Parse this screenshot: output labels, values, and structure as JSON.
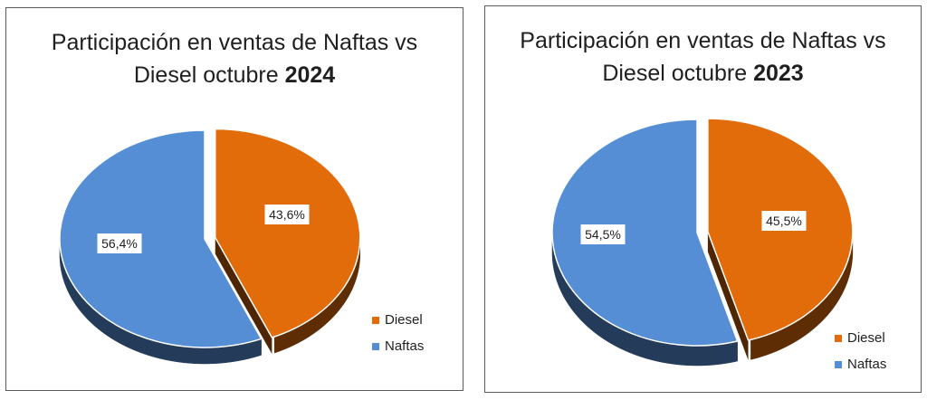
{
  "colors": {
    "diesel": "#E36C0A",
    "naftas": "#558ED5",
    "label_text": "#1f1f1f"
  },
  "chart_data": [
    {
      "type": "pie",
      "title_line1": "Participación en ventas de Naftas vs",
      "title_line2_prefix": "Diesel octubre ",
      "title_year": "2024",
      "categories": [
        "Diesel",
        "Naftas"
      ],
      "values": [
        43.6,
        56.4
      ],
      "data_labels": [
        "43,6%",
        "56,4%"
      ],
      "exploded": "Diesel",
      "three_d": true,
      "legend": {
        "position": "bottom-right",
        "entries": [
          "Diesel",
          "Naftas"
        ]
      }
    },
    {
      "type": "pie",
      "title_line1": "Participación en ventas de Naftas vs",
      "title_line2_prefix": "Diesel octubre ",
      "title_year": "2023",
      "categories": [
        "Diesel",
        "Naftas"
      ],
      "values": [
        45.5,
        54.5
      ],
      "data_labels": [
        "45,5%",
        "54,5%"
      ],
      "exploded": "Diesel",
      "three_d": true,
      "legend": {
        "position": "bottom-right",
        "entries": [
          "Diesel",
          "Naftas"
        ]
      }
    }
  ]
}
